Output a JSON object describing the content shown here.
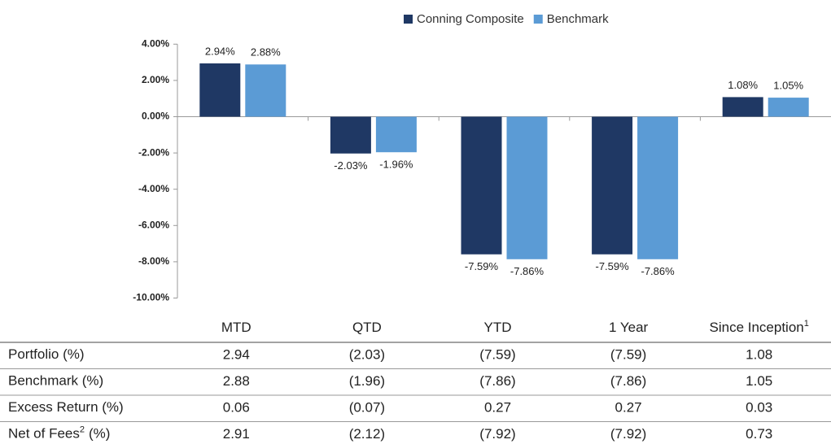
{
  "chart_data": {
    "type": "bar",
    "legend": "top",
    "categories": [
      "MTD",
      "QTD",
      "YTD",
      "1 Year",
      "Since Inception"
    ],
    "category_footnotes": [
      null,
      null,
      null,
      null,
      "1"
    ],
    "series": [
      {
        "name": "Conning Composite",
        "color": "#1f3864",
        "values": [
          2.94,
          -2.03,
          -7.59,
          -7.59,
          1.08
        ],
        "value_labels": [
          "2.94%",
          "-2.03%",
          "-7.59%",
          "-7.59%",
          "1.08%"
        ]
      },
      {
        "name": "Benchmark",
        "color": "#5b9bd5",
        "values": [
          2.88,
          -1.96,
          -7.86,
          -7.86,
          1.05
        ],
        "value_labels": [
          "2.88%",
          "-1.96%",
          "-7.86%",
          "-7.86%",
          "1.05%"
        ]
      }
    ],
    "ylim": [
      -10,
      4
    ],
    "yticks": [
      {
        "value": -10,
        "label": "-10.00%"
      },
      {
        "value": -8,
        "label": "-8.00%"
      },
      {
        "value": -6,
        "label": "-6.00%"
      },
      {
        "value": -4,
        "label": "-4.00%"
      },
      {
        "value": -2,
        "label": "-2.00%"
      },
      {
        "value": 0,
        "label": "0.00%"
      },
      {
        "value": 2,
        "label": "2.00%"
      },
      {
        "value": 4,
        "label": "4.00%"
      }
    ]
  },
  "table": {
    "rows": [
      {
        "label": "Portfolio (%)",
        "cells": [
          "2.94",
          "(2.03)",
          "(7.59)",
          "(7.59)",
          "1.08"
        ]
      },
      {
        "label": "Benchmark (%)",
        "cells": [
          "2.88",
          "(1.96)",
          "(7.86)",
          "(7.86)",
          "1.05"
        ]
      },
      {
        "label": "Excess Return (%)",
        "cells": [
          "0.06",
          "(0.07)",
          "0.27",
          "0.27",
          "0.03"
        ]
      },
      {
        "label": "Net of Fees",
        "footnote": "2",
        "suffix": "(%)",
        "cells": [
          "2.91",
          "(2.12)",
          "(7.92)",
          "(7.92)",
          "0.73"
        ]
      }
    ]
  }
}
